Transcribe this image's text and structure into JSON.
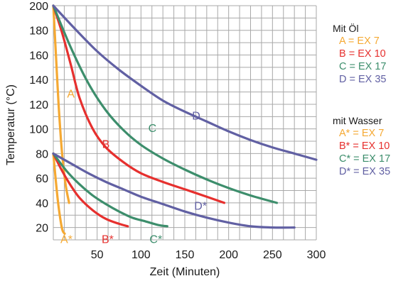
{
  "chart_data": {
    "type": "line",
    "xlabel": "Zeit (Minuten)",
    "ylabel": "Temperatur (°C)",
    "xlim": [
      0,
      300
    ],
    "ylim": [
      10,
      200
    ],
    "xticks": [
      "50",
      "100",
      "150",
      "200",
      "250",
      "300"
    ],
    "yticks": [
      "20",
      "40",
      "60",
      "80",
      "100",
      "120",
      "140",
      "160",
      "180",
      "200"
    ],
    "grid": true,
    "groups": [
      {
        "title": "Mit Öl",
        "entries": [
          "A = EX 7",
          "B = EX 10",
          "C = EX 17",
          "D = EX 35"
        ]
      },
      {
        "title": "mit Wasser",
        "entries": [
          "A* = EX 7",
          "B* = EX 10",
          "C* = EX 17",
          "D* = EX 35"
        ]
      }
    ],
    "series": [
      {
        "name": "A",
        "color": "#f5a933",
        "label_at": [
          20,
          129
        ],
        "x": [
          0,
          3,
          6,
          10,
          14,
          18
        ],
        "y": [
          200,
          160,
          120,
          80,
          55,
          40
        ]
      },
      {
        "name": "B",
        "color": "#e6302e",
        "label_at": [
          60,
          88
        ],
        "x": [
          0,
          10,
          20,
          30,
          45,
          60,
          80,
          100,
          125,
          150,
          175,
          195
        ],
        "y": [
          200,
          178,
          152,
          125,
          100,
          85,
          73,
          64,
          57,
          51,
          45,
          40
        ]
      },
      {
        "name": "C",
        "color": "#3d8e6c",
        "label_at": [
          113,
          101
        ],
        "x": [
          0,
          20,
          40,
          60,
          80,
          100,
          125,
          150,
          175,
          200,
          225,
          255
        ],
        "y": [
          200,
          166,
          137,
          115,
          99,
          87,
          76,
          67,
          59,
          52,
          46,
          40
        ]
      },
      {
        "name": "D",
        "color": "#6160a3",
        "label_at": [
          163,
          111
        ],
        "x": [
          0,
          25,
          50,
          75,
          100,
          125,
          150,
          175,
          200,
          225,
          250,
          275,
          300
        ],
        "y": [
          200,
          181,
          163,
          148,
          135,
          123,
          114,
          106,
          98,
          91,
          85,
          80,
          75
        ]
      },
      {
        "name": "A*",
        "color": "#f5a933",
        "label_at": [
          15,
          11
        ],
        "x": [
          0,
          3,
          6,
          10,
          13
        ],
        "y": [
          80,
          57,
          37,
          19,
          15
        ]
      },
      {
        "name": "B*",
        "color": "#e6302e",
        "label_at": [
          62,
          11
        ],
        "x": [
          0,
          10,
          20,
          30,
          45,
          60,
          75,
          85
        ],
        "y": [
          80,
          66,
          54,
          44,
          34,
          27,
          23,
          21
        ]
      },
      {
        "name": "C*",
        "color": "#3d8e6c",
        "label_at": [
          117,
          11
        ],
        "x": [
          0,
          15,
          30,
          45,
          60,
          75,
          90,
          105,
          120,
          130
        ],
        "y": [
          80,
          66,
          55,
          46,
          39,
          33,
          28,
          25,
          22,
          21
        ]
      },
      {
        "name": "D*",
        "color": "#6160a3",
        "label_at": [
          168,
          38
        ],
        "x": [
          0,
          20,
          40,
          60,
          80,
          100,
          125,
          150,
          175,
          200,
          225,
          250,
          275
        ],
        "y": [
          80,
          72,
          64,
          57,
          51,
          45,
          39,
          33,
          28,
          24,
          21,
          20,
          20
        ]
      }
    ]
  }
}
